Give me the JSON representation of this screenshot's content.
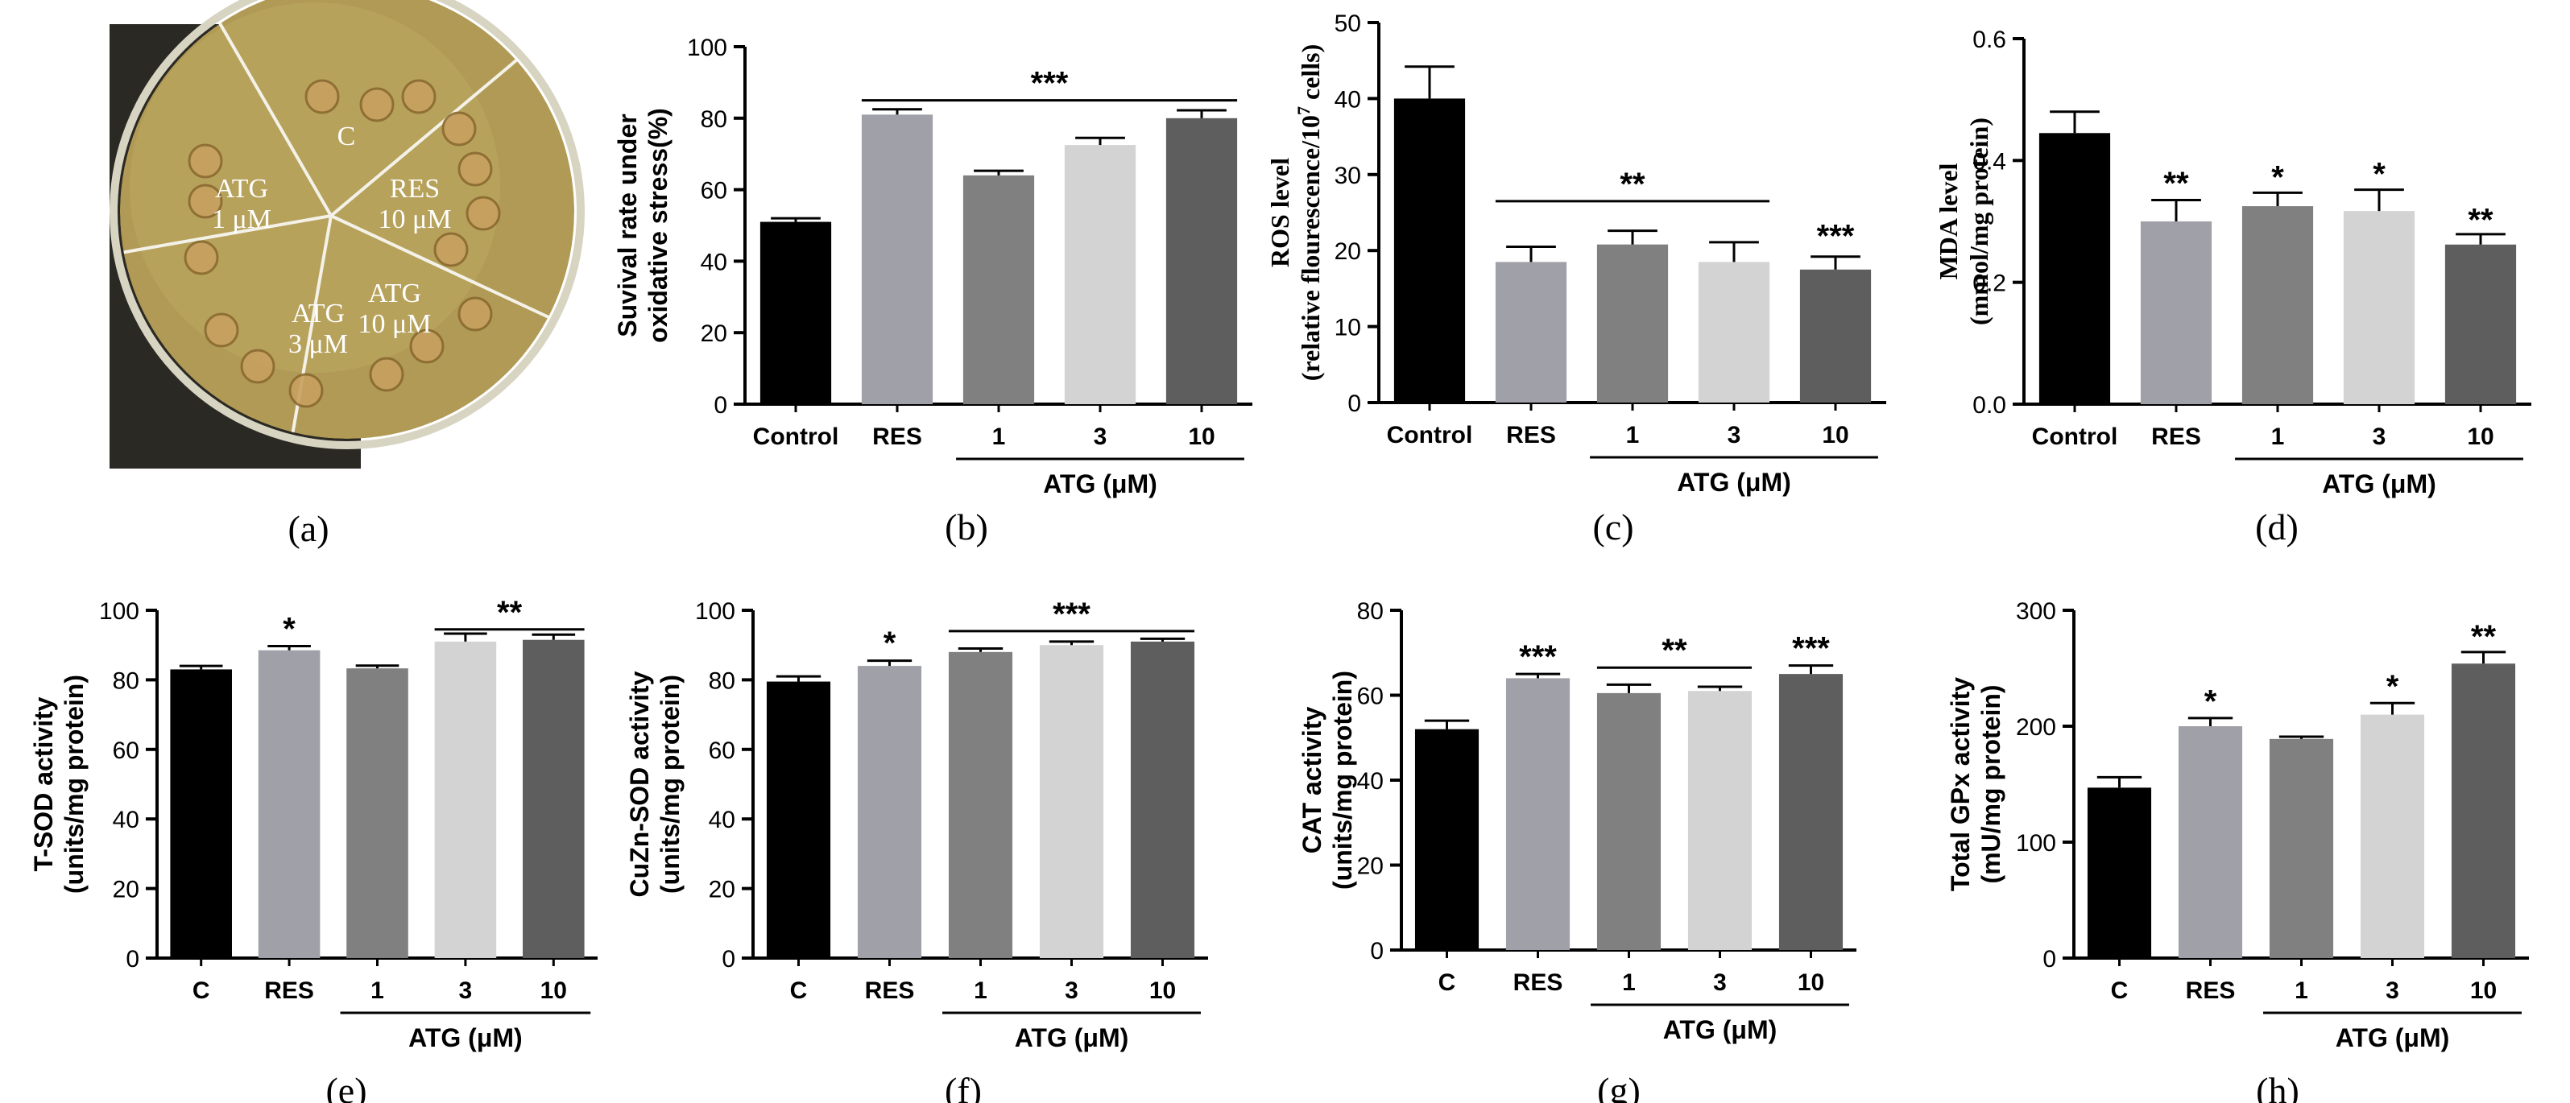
{
  "colors": {
    "bar_series": [
      "#000000",
      "#a0a0a8",
      "#808080",
      "#d3d3d3",
      "#5e5e5e"
    ],
    "axis": "#000000",
    "photo_bg": "#2a2924",
    "agar": "#b09a55",
    "colony": "#c8a060"
  },
  "photo_panel": {
    "caption": "(a)",
    "sectors": [
      {
        "line1": "C",
        "line2": ""
      },
      {
        "line1": "RES",
        "line2": "10 μM"
      },
      {
        "line1": "ATG",
        "line2": "10 μM"
      },
      {
        "line1": "ATG",
        "line2": "3 μM"
      },
      {
        "line1": "ATG",
        "line2": "1 μM"
      }
    ]
  },
  "chart_data": [
    {
      "id": "b",
      "type": "bar",
      "caption": "(b)",
      "ylabel": [
        "Suvival rate under",
        "oxidative stress(%)"
      ],
      "ylim": [
        0,
        100
      ],
      "yticks": [
        0,
        20,
        40,
        60,
        80,
        100
      ],
      "categories": [
        "Control",
        "RES",
        "1",
        "3",
        "10"
      ],
      "values": [
        51,
        81,
        64,
        72.5,
        80
      ],
      "errors": [
        1,
        1.5,
        1.3,
        2,
        2.2
      ],
      "group_label": "ATG (μM)",
      "annotations": [
        {
          "text": "***",
          "bracket": [
            1,
            4
          ],
          "y": 85
        }
      ]
    },
    {
      "id": "c",
      "type": "bar",
      "caption": "(c)",
      "ylabel": [
        "ROS level",
        "(relative flourescence/10^7 cells)"
      ],
      "ylim": [
        0,
        50
      ],
      "yticks": [
        0,
        10,
        20,
        30,
        40,
        50
      ],
      "categories": [
        "Control",
        "RES",
        "1",
        "3",
        "10"
      ],
      "values": [
        40,
        18.5,
        20.8,
        18.5,
        17.5
      ],
      "errors": [
        4.2,
        2,
        1.8,
        2.6,
        1.7
      ],
      "group_label": "ATG (μM)",
      "annotations": [
        {
          "text": "**",
          "bracket": [
            1,
            3
          ],
          "y": 26.5
        },
        {
          "text": "***",
          "bar": 4,
          "y": 20.5
        }
      ]
    },
    {
      "id": "d",
      "type": "bar",
      "caption": "(d)",
      "ylabel": [
        "MDA level",
        "(mmol/mg protein)"
      ],
      "ylim": [
        0,
        0.6
      ],
      "yticks": [
        0.0,
        0.2,
        0.4,
        0.6
      ],
      "tick_decimals": 1,
      "categories": [
        "Control",
        "RES",
        "1",
        "3",
        "10"
      ],
      "values": [
        0.445,
        0.3,
        0.325,
        0.317,
        0.262
      ],
      "errors": [
        0.035,
        0.035,
        0.022,
        0.035,
        0.017
      ],
      "group_label": "ATG (μM)",
      "annotations": [
        {
          "text": "**",
          "bar": 1,
          "y": 0.345
        },
        {
          "text": "*",
          "bar": 2,
          "y": 0.355
        },
        {
          "text": "*",
          "bar": 3,
          "y": 0.36
        },
        {
          "text": "**",
          "bar": 4,
          "y": 0.285
        }
      ]
    },
    {
      "id": "e",
      "type": "bar",
      "caption": "(e)",
      "ylabel": [
        "T-SOD activity",
        "(units/mg protein)"
      ],
      "ylim": [
        0,
        100
      ],
      "yticks": [
        0,
        20,
        40,
        60,
        80,
        100
      ],
      "categories": [
        "C",
        "RES",
        "1",
        "3",
        "10"
      ],
      "values": [
        83,
        88.5,
        83.3,
        91,
        91.5
      ],
      "errors": [
        1,
        1.2,
        0.8,
        2.3,
        1.5
      ],
      "group_label": "ATG (μM)",
      "annotations": [
        {
          "text": "*",
          "bar": 1,
          "y": 91.5
        },
        {
          "text": "**",
          "bracket": [
            3,
            4
          ],
          "y": 94.5
        }
      ]
    },
    {
      "id": "f",
      "type": "bar",
      "caption": "(f)",
      "ylabel": [
        "CuZn-SOD activity",
        "(units/mg protein)"
      ],
      "ylim": [
        0,
        100
      ],
      "yticks": [
        0,
        20,
        40,
        60,
        80,
        100
      ],
      "categories": [
        "C",
        "RES",
        "1",
        "3",
        "10"
      ],
      "values": [
        79.5,
        84,
        88,
        90,
        91
      ],
      "errors": [
        1.5,
        1.5,
        1,
        1,
        0.8
      ],
      "group_label": "ATG (μM)",
      "annotations": [
        {
          "text": "*",
          "bar": 1,
          "y": 87.5
        },
        {
          "text": "***",
          "bracket": [
            2,
            4
          ],
          "y": 94
        }
      ]
    },
    {
      "id": "g",
      "type": "bar",
      "caption": "(g)",
      "ylabel": [
        "CAT activity",
        "(units/mg protein)"
      ],
      "ylim": [
        0,
        80
      ],
      "yticks": [
        0,
        20,
        40,
        60,
        80
      ],
      "categories": [
        "C",
        "RES",
        "1",
        "3",
        "10"
      ],
      "values": [
        52,
        64,
        60.5,
        61,
        65
      ],
      "errors": [
        2,
        1,
        2,
        1,
        2
      ],
      "group_label": "ATG (μM)",
      "annotations": [
        {
          "text": "***",
          "bar": 1,
          "y": 66.5
        },
        {
          "text": "**",
          "bracket": [
            2,
            3
          ],
          "y": 66.5
        },
        {
          "text": "***",
          "bar": 4,
          "y": 68.5
        }
      ]
    },
    {
      "id": "h",
      "type": "bar",
      "caption": "(h)",
      "ylabel": [
        "Total GPx activity",
        "(mU/mg protein)"
      ],
      "ylim": [
        0,
        300
      ],
      "yticks": [
        0,
        100,
        200,
        300
      ],
      "categories": [
        "C",
        "RES",
        "1",
        "3",
        "10"
      ],
      "values": [
        147,
        200,
        189,
        210,
        254
      ],
      "errors": [
        9,
        7,
        2,
        10,
        10
      ],
      "group_label": "ATG (μM)",
      "annotations": [
        {
          "text": "*",
          "bar": 1,
          "y": 212
        },
        {
          "text": "*",
          "bar": 3,
          "y": 225
        },
        {
          "text": "**",
          "bar": 4,
          "y": 268
        }
      ]
    }
  ]
}
